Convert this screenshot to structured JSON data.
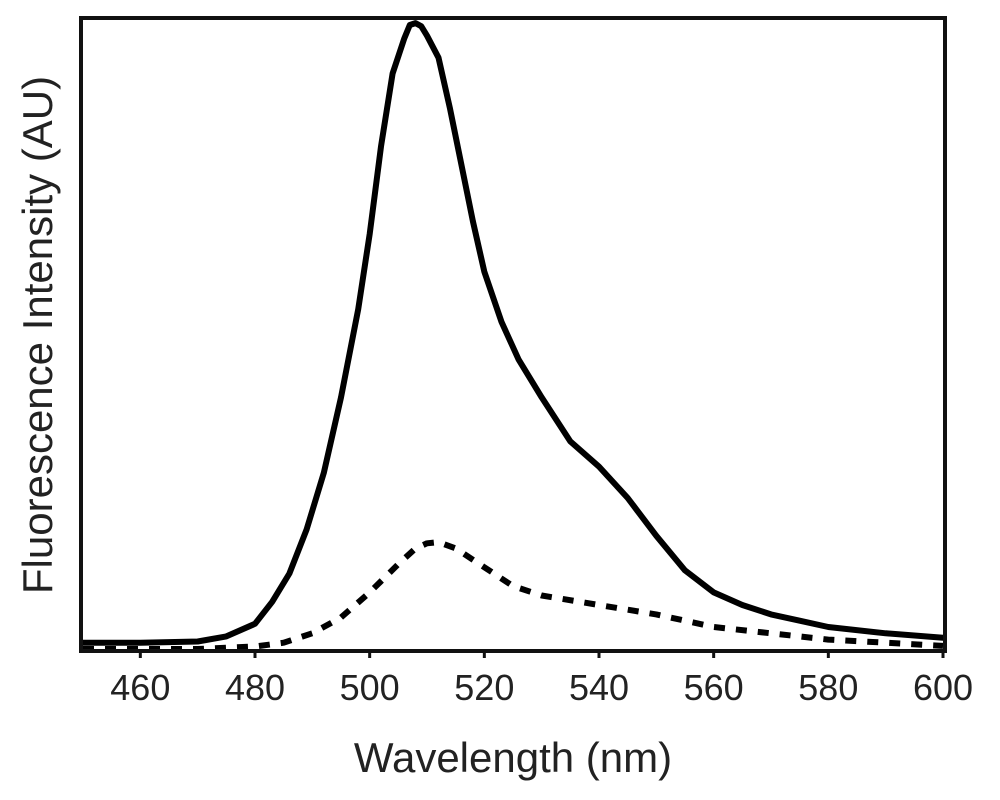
{
  "chart_data": {
    "type": "line",
    "title": "",
    "xlabel": "Wavelength (nm)",
    "ylabel": "Fluorescence Intensity (AU)",
    "xlim": [
      450,
      600
    ],
    "ylim": [
      0,
      1.0
    ],
    "grid": false,
    "legend": "none",
    "x_ticks": [
      460,
      480,
      500,
      520,
      540,
      560,
      580,
      600
    ],
    "x_tick_labels": [
      "460",
      "480",
      "500",
      "520",
      "540",
      "560",
      "580",
      "600"
    ],
    "series": [
      {
        "style": "solid",
        "color": "#000000",
        "x": [
          450,
          460,
          470,
          475,
          480,
          483,
          486,
          489,
          492,
          495,
          498,
          500,
          502,
          504,
          506,
          507,
          508,
          509,
          510,
          512,
          514,
          516,
          518,
          520,
          523,
          526,
          530,
          535,
          540,
          545,
          550,
          555,
          560,
          565,
          570,
          575,
          580,
          590,
          600
        ],
        "y": [
          0.01,
          0.01,
          0.012,
          0.02,
          0.04,
          0.075,
          0.12,
          0.19,
          0.28,
          0.4,
          0.54,
          0.66,
          0.8,
          0.915,
          0.97,
          0.992,
          0.995,
          0.99,
          0.975,
          0.94,
          0.86,
          0.77,
          0.68,
          0.6,
          0.52,
          0.46,
          0.4,
          0.33,
          0.29,
          0.24,
          0.18,
          0.125,
          0.09,
          0.07,
          0.055,
          0.045,
          0.035,
          0.025,
          0.018
        ]
      },
      {
        "style": "dashed",
        "color": "#000000",
        "x": [
          450,
          460,
          470,
          475,
          480,
          485,
          490,
          495,
          500,
          505,
          508,
          510,
          512,
          515,
          520,
          525,
          530,
          540,
          550,
          560,
          570,
          580,
          590,
          600
        ],
        "y": [
          0.0,
          0.0,
          0.0,
          0.002,
          0.004,
          0.01,
          0.025,
          0.05,
          0.09,
          0.135,
          0.16,
          0.168,
          0.17,
          0.16,
          0.13,
          0.1,
          0.085,
          0.07,
          0.055,
          0.035,
          0.025,
          0.015,
          0.01,
          0.005
        ]
      }
    ]
  }
}
